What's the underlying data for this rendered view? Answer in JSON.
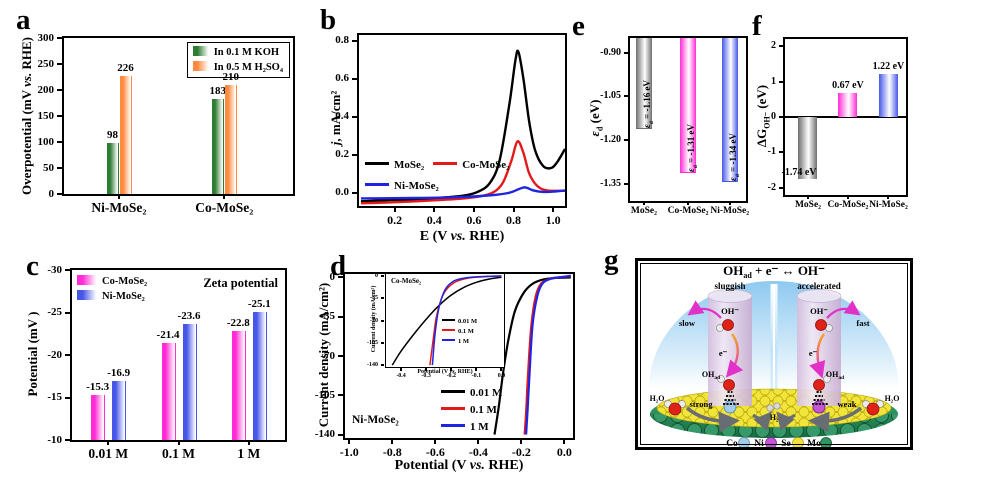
{
  "figure": {
    "background": "#ffffff"
  },
  "chart_data": [
    {
      "panel": "a",
      "letter": "a",
      "type": "bar",
      "categories": [
        "Ni-MoSe₂",
        "Co-MoSe₂"
      ],
      "series": [
        {
          "name": "In 0.1 M KOH",
          "color": "#2e7d32",
          "values": [
            98,
            183
          ]
        },
        {
          "name": "In 0.5 M H₂SO₄",
          "color": "#ff8a3e",
          "values": [
            226,
            210
          ]
        }
      ],
      "ylabel_pre": "Overpotential (mV ",
      "ylabel_vs": "vs.",
      "ylabel_post": " RHE)",
      "ylim": [
        0,
        300
      ],
      "yticks": [
        0,
        50,
        100,
        150,
        200,
        250,
        300
      ],
      "legend_position": "top-right"
    },
    {
      "panel": "b",
      "letter": "b",
      "type": "line",
      "xlabel_pre": "E (V ",
      "xlabel_vs": "vs.",
      "xlabel_post": " RHE)",
      "ylabel_italic": "j",
      "ylabel_rest": ", mA/cm²",
      "xlim": [
        0.02,
        1.06
      ],
      "ylim": [
        -0.07,
        0.83
      ],
      "xticks": [
        0.2,
        0.4,
        0.6,
        0.8,
        1.0
      ],
      "yticks": [
        0.0,
        0.2,
        0.4,
        0.6,
        0.8
      ],
      "series": [
        {
          "name": "MoSe₂",
          "color": "#000000",
          "points": [
            [
              0.03,
              -0.045
            ],
            [
              0.15,
              -0.04
            ],
            [
              0.3,
              -0.035
            ],
            [
              0.45,
              -0.025
            ],
            [
              0.55,
              -0.015
            ],
            [
              0.62,
              0.005
            ],
            [
              0.68,
              0.05
            ],
            [
              0.73,
              0.17
            ],
            [
              0.78,
              0.47
            ],
            [
              0.81,
              0.7
            ],
            [
              0.825,
              0.74
            ],
            [
              0.85,
              0.6
            ],
            [
              0.88,
              0.37
            ],
            [
              0.91,
              0.22
            ],
            [
              0.95,
              0.14
            ],
            [
              0.99,
              0.13
            ],
            [
              1.02,
              0.16
            ],
            [
              1.06,
              0.23
            ]
          ]
        },
        {
          "name": "Co-MoSe₂",
          "color": "#e31a1a",
          "points": [
            [
              0.03,
              -0.055
            ],
            [
              0.2,
              -0.05
            ],
            [
              0.4,
              -0.04
            ],
            [
              0.55,
              -0.03
            ],
            [
              0.65,
              -0.015
            ],
            [
              0.71,
              0.01
            ],
            [
              0.75,
              0.06
            ],
            [
              0.79,
              0.17
            ],
            [
              0.82,
              0.27
            ],
            [
              0.85,
              0.21
            ],
            [
              0.88,
              0.1
            ],
            [
              0.92,
              0.035
            ],
            [
              0.97,
              0.012
            ],
            [
              1.06,
              0.01
            ]
          ]
        },
        {
          "name": "Ni-MoSe₂",
          "color": "#1f24e0",
          "points": [
            [
              0.03,
              -0.03
            ],
            [
              0.3,
              -0.028
            ],
            [
              0.55,
              -0.022
            ],
            [
              0.7,
              -0.012
            ],
            [
              0.78,
              0.0
            ],
            [
              0.83,
              0.02
            ],
            [
              0.86,
              0.028
            ],
            [
              0.9,
              0.012
            ],
            [
              0.95,
              0.004
            ],
            [
              1.0,
              0.006
            ],
            [
              1.06,
              0.012
            ]
          ]
        }
      ]
    },
    {
      "panel": "c",
      "letter": "c",
      "type": "bar",
      "title": "Zeta potential",
      "categories": [
        "0.01 M",
        "0.1 M",
        "1 M"
      ],
      "series": [
        {
          "name": "Co-MoSe₂",
          "color": "#ff2bd6",
          "values": [
            -15.3,
            -21.4,
            -22.8
          ]
        },
        {
          "name": "Ni-MoSe₂",
          "color": "#4657e8",
          "values": [
            -16.9,
            -23.6,
            -25.1
          ]
        }
      ],
      "ylabel": "Potential (mV )",
      "ylim": [
        -10,
        -30
      ],
      "yticks": [
        -10,
        -15,
        -20,
        -25,
        -30
      ]
    },
    {
      "panel": "d",
      "letter": "d",
      "type": "line",
      "annotation": "Ni-MoSe₂",
      "xlabel_pre": "Potential (V ",
      "xlabel_vs": "vs.",
      "xlabel_post": " RHE)",
      "ylabel": "Current density (mA/cm²)",
      "xlim": [
        -1.02,
        0.04
      ],
      "ylim": [
        -143,
        3
      ],
      "xticks": [
        -1.0,
        -0.8,
        -0.6,
        -0.4,
        -0.2,
        0.0
      ],
      "yticks": [
        0,
        -35,
        -70,
        -105,
        -140
      ],
      "series": [
        {
          "name": "0.01 M",
          "color": "#000000",
          "points": [
            [
              0.03,
              0
            ],
            [
              -0.04,
              -0.5
            ],
            [
              -0.1,
              -2
            ],
            [
              -0.15,
              -6
            ],
            [
              -0.19,
              -14
            ],
            [
              -0.23,
              -30
            ],
            [
              -0.26,
              -55
            ],
            [
              -0.285,
              -85
            ],
            [
              -0.305,
              -115
            ],
            [
              -0.325,
              -140
            ]
          ]
        },
        {
          "name": "0.1 M",
          "color": "#e31a1a",
          "points": [
            [
              0.03,
              1
            ],
            [
              -0.02,
              0
            ],
            [
              -0.07,
              -1.5
            ],
            [
              -0.11,
              -6
            ],
            [
              -0.135,
              -18
            ],
            [
              -0.155,
              -45
            ],
            [
              -0.17,
              -90
            ],
            [
              -0.178,
              -120
            ],
            [
              -0.185,
              -140
            ]
          ]
        },
        {
          "name": "1 M",
          "color": "#1f24e0",
          "points": [
            [
              0.03,
              1.5
            ],
            [
              -0.01,
              0.3
            ],
            [
              -0.06,
              -1
            ],
            [
              -0.1,
              -5
            ],
            [
              -0.125,
              -16
            ],
            [
              -0.148,
              -42
            ],
            [
              -0.162,
              -85
            ],
            [
              -0.171,
              -118
            ],
            [
              -0.178,
              -140
            ]
          ]
        }
      ],
      "inset": {
        "annotation": "Co-MoSe₂",
        "xlabel_pre": "Potential (V ",
        "xlabel_vs": "vs.",
        "xlabel_post": " RHE)",
        "ylabel": "Current density (mA/cm²)",
        "xlim": [
          -0.46,
          0.01
        ],
        "ylim": [
          -143,
          3
        ],
        "xticks": [
          -0.4,
          -0.3,
          -0.2,
          -0.1,
          0.0
        ],
        "yticks": [
          0,
          -35,
          -70,
          -105,
          -140
        ],
        "series": [
          {
            "name": "0.01 M",
            "color": "#000000",
            "points": [
              [
                0.0,
                -2
              ],
              [
                -0.05,
                -5
              ],
              [
                -0.1,
                -10
              ],
              [
                -0.15,
                -18
              ],
              [
                -0.2,
                -30
              ],
              [
                -0.25,
                -47
              ],
              [
                -0.3,
                -68
              ],
              [
                -0.35,
                -92
              ],
              [
                -0.4,
                -118
              ],
              [
                -0.435,
                -140
              ]
            ]
          },
          {
            "name": "0.1 M",
            "color": "#e31a1a",
            "points": [
              [
                0.0,
                -0.5
              ],
              [
                -0.08,
                -1.5
              ],
              [
                -0.14,
                -4
              ],
              [
                -0.19,
                -11
              ],
              [
                -0.23,
                -28
              ],
              [
                -0.258,
                -62
              ],
              [
                -0.272,
                -100
              ],
              [
                -0.285,
                -140
              ]
            ]
          },
          {
            "name": "1 M",
            "color": "#1f24e0",
            "points": [
              [
                0.0,
                0
              ],
              [
                -0.07,
                -1
              ],
              [
                -0.14,
                -3
              ],
              [
                -0.19,
                -8
              ],
              [
                -0.225,
                -22
              ],
              [
                -0.25,
                -52
              ],
              [
                -0.265,
                -92
              ],
              [
                -0.275,
                -140
              ]
            ]
          }
        ]
      }
    },
    {
      "panel": "e",
      "letter": "e",
      "type": "bar",
      "categories": [
        "MoSe₂",
        "Co-MoSe₂",
        "Ni-MoSe₂"
      ],
      "values": [
        -1.16,
        -1.31,
        -1.34
      ],
      "colors": [
        "#6e6e6e",
        "#ff2bd6",
        "#4657e8"
      ],
      "label_sym": "ε",
      "label_sub": "d",
      "label_rests": [
        " = -1.16 eV",
        " = -1.31 eV",
        " = -1.34 eV"
      ],
      "ylabel_sym": "ε",
      "ylabel_sub": "d",
      "ylabel_unit": " (eV)",
      "ylim": [
        -1.41,
        -0.85
      ],
      "yticks": [
        -0.9,
        -1.05,
        -1.2,
        -1.35
      ]
    },
    {
      "panel": "f",
      "letter": "f",
      "type": "bar",
      "categories": [
        "MoSe₂",
        "Co-MoSe₂",
        "Ni-MoSe₂"
      ],
      "values": [
        -1.74,
        0.67,
        1.22
      ],
      "colors": [
        "#6e6e6e",
        "#ff2bd6",
        "#4657e8"
      ],
      "bar_labels": [
        "-1.74 eV",
        "0.67 eV",
        "1.22 eV"
      ],
      "ylabel_sym": "ΔG",
      "ylabel_sub": "OH⁻",
      "ylabel_unit": " (eV)",
      "ylim": [
        -2.2,
        2.2
      ],
      "yticks": [
        2,
        1,
        0,
        -1,
        -2
      ]
    },
    {
      "panel": "g",
      "letter": "g",
      "type": "diagram",
      "title_base": "OH",
      "title_sub": "ad",
      "title_rest": " + e⁻ ↔ OH⁻",
      "left_state": "sluggish",
      "right_state": "accelerated",
      "slow": "slow",
      "fast": "fast",
      "oh_minus": "OH⁻",
      "electron": "e⁻",
      "ohad_base": "OH",
      "ohad_sub": "ad",
      "strong": "strong",
      "weak": "weak",
      "h2o": "H₂O",
      "h2": "H₂",
      "legend_labels": [
        "Co",
        "Ni",
        "Se",
        "Mo"
      ],
      "legend_colors": [
        "#a3cbe8",
        "#c455d6",
        "#f2e13a",
        "#2f9663"
      ]
    }
  ]
}
